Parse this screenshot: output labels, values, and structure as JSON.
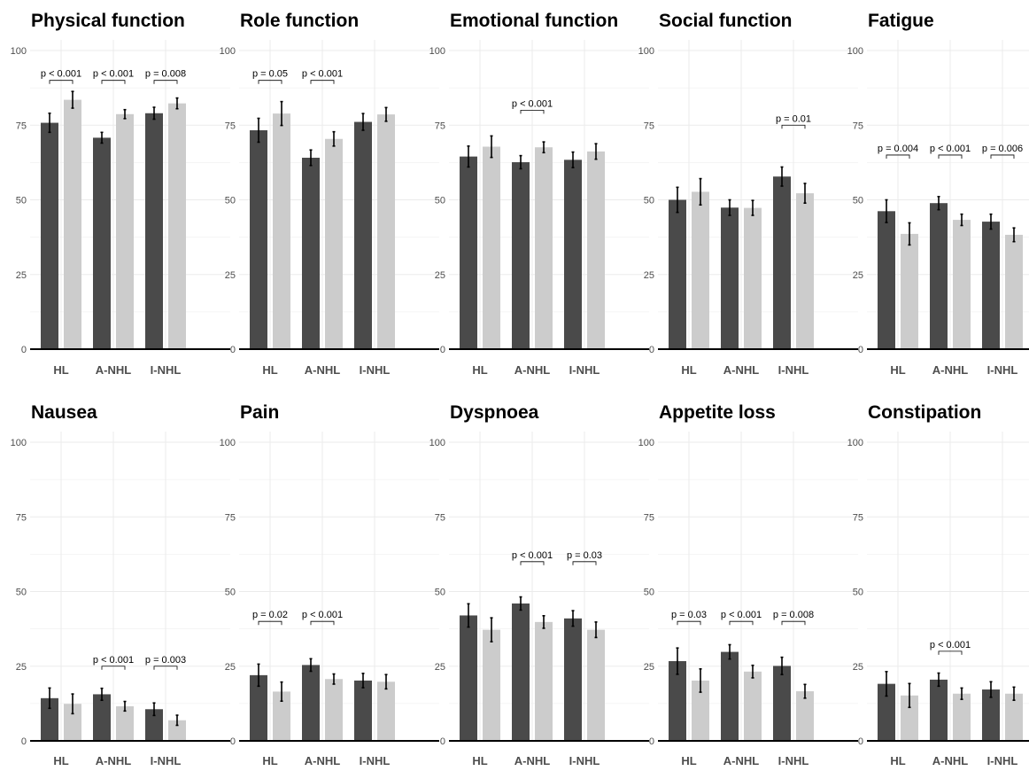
{
  "colors": {
    "dark": "#4a4a4a",
    "light": "#cccccc",
    "grid": "#ebebeb",
    "axis": "#000000",
    "tick_text": "#4d4d4d"
  },
  "chart_data": [
    {
      "type": "bar",
      "title": "Physical function",
      "categories": [
        "HL",
        "A-NHL",
        "I-NHL"
      ],
      "yticks": [
        "0",
        "25",
        "50",
        "75",
        "100"
      ],
      "ylim": [
        0,
        100
      ],
      "series": [
        {
          "values": [
            75.8,
            70.8,
            79.0
          ],
          "err": [
            3.2,
            1.8,
            2.0
          ]
        },
        {
          "values": [
            83.5,
            78.7,
            82.3
          ],
          "err": [
            2.8,
            1.5,
            1.8
          ]
        }
      ],
      "annotations": [
        {
          "category": 0,
          "text": "p < 0.001",
          "y": 90
        },
        {
          "category": 1,
          "text": "p < 0.001",
          "y": 90
        },
        {
          "category": 2,
          "text": "p = 0.008",
          "y": 90
        }
      ]
    },
    {
      "type": "bar",
      "title": "Role function",
      "categories": [
        "HL",
        "A-NHL",
        "I-NHL"
      ],
      "yticks": [
        "0",
        "25",
        "50",
        "75",
        "100"
      ],
      "ylim": [
        0,
        100
      ],
      "series": [
        {
          "values": [
            73.3,
            64.1,
            76.1
          ],
          "err": [
            4.0,
            2.6,
            2.8
          ]
        },
        {
          "values": [
            78.9,
            70.4,
            78.6
          ],
          "err": [
            4.0,
            2.4,
            2.3
          ]
        }
      ],
      "annotations": [
        {
          "category": 0,
          "text": "p = 0.05",
          "y": 90
        },
        {
          "category": 1,
          "text": "p < 0.001",
          "y": 90
        }
      ]
    },
    {
      "type": "bar",
      "title": "Emotional function",
      "categories": [
        "HL",
        "A-NHL",
        "I-NHL"
      ],
      "yticks": [
        "0",
        "25",
        "50",
        "75",
        "100"
      ],
      "ylim": [
        0,
        100
      ],
      "series": [
        {
          "values": [
            64.5,
            62.6,
            63.4
          ],
          "err": [
            3.5,
            2.2,
            2.6
          ]
        },
        {
          "values": [
            67.8,
            67.6,
            66.2
          ],
          "err": [
            3.6,
            1.8,
            2.6
          ]
        }
      ],
      "annotations": [
        {
          "category": 1,
          "text": "p < 0.001",
          "y": 80
        }
      ]
    },
    {
      "type": "bar",
      "title": "Social function",
      "categories": [
        "HL",
        "A-NHL",
        "I-NHL"
      ],
      "yticks": [
        "0",
        "25",
        "50",
        "75",
        "100"
      ],
      "ylim": [
        0,
        100
      ],
      "series": [
        {
          "values": [
            50.0,
            47.4,
            57.8
          ],
          "err": [
            4.2,
            2.6,
            3.2
          ]
        },
        {
          "values": [
            52.7,
            47.3,
            52.2
          ],
          "err": [
            4.4,
            2.5,
            3.3
          ]
        }
      ],
      "annotations": [
        {
          "category": 2,
          "text": "p = 0.01",
          "y": 75
        }
      ]
    },
    {
      "type": "bar",
      "title": "Fatigue",
      "categories": [
        "HL",
        "A-NHL",
        "I-NHL"
      ],
      "yticks": [
        "0",
        "25",
        "50",
        "75",
        "100"
      ],
      "ylim": [
        0,
        100
      ],
      "series": [
        {
          "values": [
            46.2,
            48.9,
            42.7
          ],
          "err": [
            3.8,
            2.2,
            2.5
          ]
        },
        {
          "values": [
            38.6,
            43.3,
            38.3
          ],
          "err": [
            3.7,
            1.9,
            2.3
          ]
        }
      ],
      "annotations": [
        {
          "category": 0,
          "text": "p = 0.004",
          "y": 65
        },
        {
          "category": 1,
          "text": "p < 0.001",
          "y": 65
        },
        {
          "category": 2,
          "text": "p = 0.006",
          "y": 65
        }
      ]
    },
    {
      "type": "bar",
      "title": "Nausea",
      "categories": [
        "HL",
        "A-NHL",
        "I-NHL"
      ],
      "yticks": [
        "0",
        "25",
        "50",
        "75",
        "100"
      ],
      "ylim": [
        0,
        100
      ],
      "series": [
        {
          "values": [
            14.3,
            15.6,
            10.6
          ],
          "err": [
            3.4,
            2.0,
            2.1
          ]
        },
        {
          "values": [
            12.4,
            11.6,
            6.9
          ],
          "err": [
            3.3,
            1.6,
            1.7
          ]
        }
      ],
      "annotations": [
        {
          "category": 1,
          "text": "p < 0.001",
          "y": 25
        },
        {
          "category": 2,
          "text": "p = 0.003",
          "y": 25
        }
      ]
    },
    {
      "type": "bar",
      "title": "Pain",
      "categories": [
        "HL",
        "A-NHL",
        "I-NHL"
      ],
      "yticks": [
        "0",
        "25",
        "50",
        "75",
        "100"
      ],
      "ylim": [
        0,
        100
      ],
      "series": [
        {
          "values": [
            22.0,
            25.4,
            20.2
          ],
          "err": [
            3.7,
            2.1,
            2.4
          ]
        },
        {
          "values": [
            16.5,
            20.7,
            19.8
          ],
          "err": [
            3.2,
            1.7,
            2.4
          ]
        }
      ],
      "annotations": [
        {
          "category": 0,
          "text": "p = 0.02",
          "y": 40
        },
        {
          "category": 1,
          "text": "p < 0.001",
          "y": 40
        }
      ]
    },
    {
      "type": "bar",
      "title": "Dyspnoea",
      "categories": [
        "HL",
        "A-NHL",
        "I-NHL"
      ],
      "yticks": [
        "0",
        "25",
        "50",
        "75",
        "100"
      ],
      "ylim": [
        0,
        100
      ],
      "series": [
        {
          "values": [
            42.0,
            46.0,
            41.0
          ],
          "err": [
            3.9,
            2.2,
            2.6
          ]
        },
        {
          "values": [
            37.2,
            39.8,
            37.2
          ],
          "err": [
            4.0,
            2.1,
            2.6
          ]
        }
      ],
      "annotations": [
        {
          "category": 1,
          "text": "p < 0.001",
          "y": 60
        },
        {
          "category": 2,
          "text": "p = 0.03",
          "y": 60
        }
      ]
    },
    {
      "type": "bar",
      "title": "Appetite loss",
      "categories": [
        "HL",
        "A-NHL",
        "I-NHL"
      ],
      "yticks": [
        "0",
        "25",
        "50",
        "75",
        "100"
      ],
      "ylim": [
        0,
        100
      ],
      "series": [
        {
          "values": [
            26.7,
            29.8,
            25.1
          ],
          "err": [
            4.4,
            2.4,
            2.9
          ]
        },
        {
          "values": [
            20.2,
            23.2,
            16.6
          ],
          "err": [
            3.9,
            2.1,
            2.3
          ]
        }
      ],
      "annotations": [
        {
          "category": 0,
          "text": "p = 0.03",
          "y": 40
        },
        {
          "category": 1,
          "text": "p < 0.001",
          "y": 40
        },
        {
          "category": 2,
          "text": "p = 0.008",
          "y": 40
        }
      ]
    },
    {
      "type": "bar",
      "title": "Constipation",
      "categories": [
        "HL",
        "A-NHL",
        "I-NHL"
      ],
      "yticks": [
        "0",
        "25",
        "50",
        "75",
        "100"
      ],
      "ylim": [
        0,
        100
      ],
      "series": [
        {
          "values": [
            19.1,
            20.5,
            17.2
          ],
          "err": [
            4.1,
            2.2,
            2.6
          ]
        },
        {
          "values": [
            15.2,
            15.8,
            15.8
          ],
          "err": [
            4.0,
            1.9,
            2.2
          ]
        }
      ],
      "annotations": [
        {
          "category": 1,
          "text": "p < 0.001",
          "y": 30
        }
      ]
    }
  ]
}
